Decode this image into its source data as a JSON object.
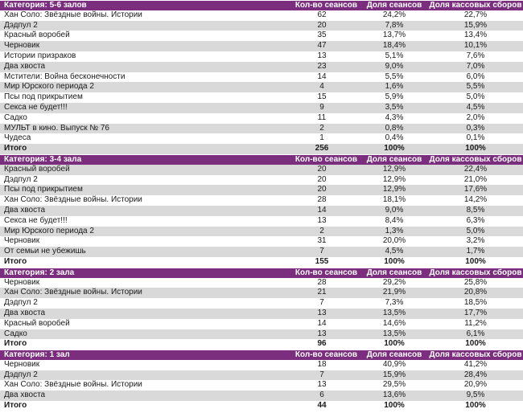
{
  "columns": {
    "sessions": "Кол-во сеансов",
    "share_sessions": "Доля сеансов",
    "share_box_office": "Доля кассовых сборов"
  },
  "colors": {
    "header_bg": "#7b2d7e",
    "stripe": "#d9d9d9"
  },
  "sections": [
    {
      "title": "Категория: 5-6 залов",
      "rows": [
        [
          "Хан Соло: Звёздные войны. Истории",
          "62",
          "24,2%",
          "22,7%"
        ],
        [
          "Дэдпул 2",
          "20",
          "7,8%",
          "15,9%"
        ],
        [
          "Красный воробей",
          "35",
          "13,7%",
          "13,4%"
        ],
        [
          "Черновик",
          "47",
          "18,4%",
          "10,1%"
        ],
        [
          "Истории призраков",
          "13",
          "5,1%",
          "7,6%"
        ],
        [
          "Два хвоста",
          "23",
          "9,0%",
          "7,0%"
        ],
        [
          "Мстители: Война бесконечности",
          "14",
          "5,5%",
          "6,0%"
        ],
        [
          "Мир Юрского периода 2",
          "4",
          "1,6%",
          "5,5%"
        ],
        [
          "Псы под прикрытием",
          "15",
          "5,9%",
          "5,0%"
        ],
        [
          "Секса не будет!!!",
          "9",
          "3,5%",
          "4,5%"
        ],
        [
          "Садко",
          "11",
          "4,3%",
          "2,0%"
        ],
        [
          "МУЛЬТ в кино. Выпуск № 76",
          "2",
          "0,8%",
          "0,3%"
        ],
        [
          "Чудеса",
          "1",
          "0,4%",
          "0,1%"
        ]
      ],
      "total": [
        "Итого",
        "256",
        "100%",
        "100%"
      ]
    },
    {
      "title": "Категория: 3-4 зала",
      "rows": [
        [
          "Красный воробей",
          "20",
          "12,9%",
          "22,4%"
        ],
        [
          "Дэдпул 2",
          "20",
          "12,9%",
          "21,0%"
        ],
        [
          "Псы под прикрытием",
          "20",
          "12,9%",
          "17,6%"
        ],
        [
          "Хан Соло: Звёздные войны. Истории",
          "28",
          "18,1%",
          "14,2%"
        ],
        [
          "Два хвоста",
          "14",
          "9,0%",
          "8,5%"
        ],
        [
          "Секса не будет!!!",
          "13",
          "8,4%",
          "6,3%"
        ],
        [
          "Мир Юрского периода 2",
          "2",
          "1,3%",
          "5,0%"
        ],
        [
          "Черновик",
          "31",
          "20,0%",
          "3,2%"
        ],
        [
          "От семьи не убежишь",
          "7",
          "4,5%",
          "1,7%"
        ]
      ],
      "total": [
        "Итого",
        "155",
        "100%",
        "100%"
      ]
    },
    {
      "title": "Категория: 2 зала",
      "rows": [
        [
          "Черновик",
          "28",
          "29,2%",
          "25,8%"
        ],
        [
          "Хан Соло: Звёздные войны. Истории",
          "21",
          "21,9%",
          "20,8%"
        ],
        [
          "Дэдпул 2",
          "7",
          "7,3%",
          "18,5%"
        ],
        [
          "Два хвоста",
          "13",
          "13,5%",
          "17,7%"
        ],
        [
          "Красный воробей",
          "14",
          "14,6%",
          "11,2%"
        ],
        [
          "Садко",
          "13",
          "13,5%",
          "6,1%"
        ]
      ],
      "total": [
        "Итого",
        "96",
        "100%",
        "100%"
      ]
    },
    {
      "title": "Категория: 1 зал",
      "rows": [
        [
          "Черновик",
          "18",
          "40,9%",
          "41,2%"
        ],
        [
          "Дэдпул 2",
          "7",
          "15,9%",
          "28,4%"
        ],
        [
          "Хан Соло: Звёздные войны. Истории",
          "13",
          "29,5%",
          "20,9%"
        ],
        [
          "Два хвоста",
          "6",
          "13,6%",
          "9,5%"
        ]
      ],
      "total": [
        "Итого",
        "44",
        "100%",
        "100%"
      ]
    }
  ]
}
